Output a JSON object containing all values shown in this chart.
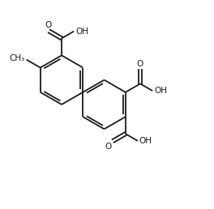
{
  "bg_color": "#ffffff",
  "line_color": "#1a1a1a",
  "line_width": 1.3,
  "font_size": 7.5,
  "figsize": [
    2.64,
    2.58
  ],
  "dpi": 100,
  "xlim": [
    0,
    11
  ],
  "ylim": [
    0,
    11
  ]
}
